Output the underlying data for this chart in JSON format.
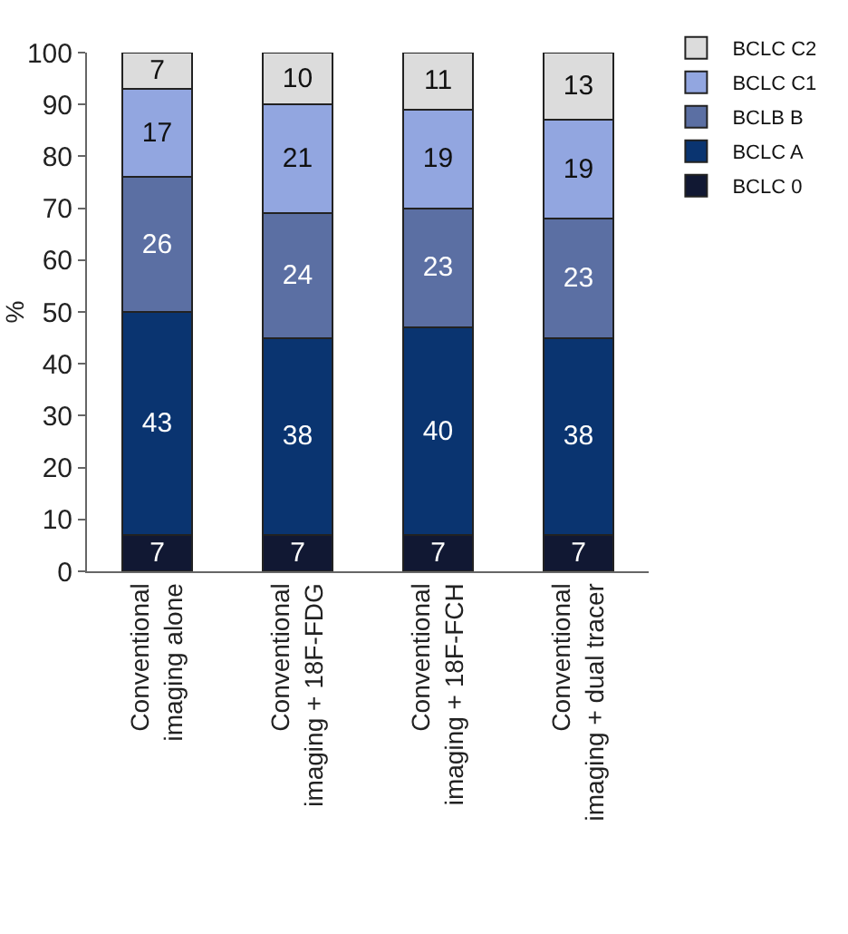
{
  "chart_data": {
    "type": "bar",
    "stacked": true,
    "ylabel": "%",
    "categories": [
      "Conventional imaging alone",
      "Conventional imaging + 18F-FDG",
      "Conventional imaging + 18F-FCH",
      "Conventional imaging + dual tracer"
    ],
    "series": [
      {
        "name": "BCLC 0",
        "color": "#111833",
        "values": [
          7,
          7,
          7,
          7
        ]
      },
      {
        "name": "BCLC A",
        "color": "#0a3470",
        "values": [
          43,
          38,
          40,
          38
        ]
      },
      {
        "name": "BCLB B",
        "color": "#5b6fa3",
        "values": [
          26,
          24,
          23,
          23
        ]
      },
      {
        "name": "BCLC C1",
        "color": "#92a6e0",
        "values": [
          17,
          21,
          19,
          19
        ]
      },
      {
        "name": "BCLC C2",
        "color": "#dcdcdc",
        "values": [
          7,
          10,
          11,
          13
        ]
      }
    ],
    "ylim": [
      0,
      100
    ],
    "yticks": [
      0,
      10,
      20,
      30,
      40,
      50,
      60,
      70,
      80,
      90,
      100
    ],
    "grid": false,
    "legend": "top right",
    "data_labels": true
  }
}
